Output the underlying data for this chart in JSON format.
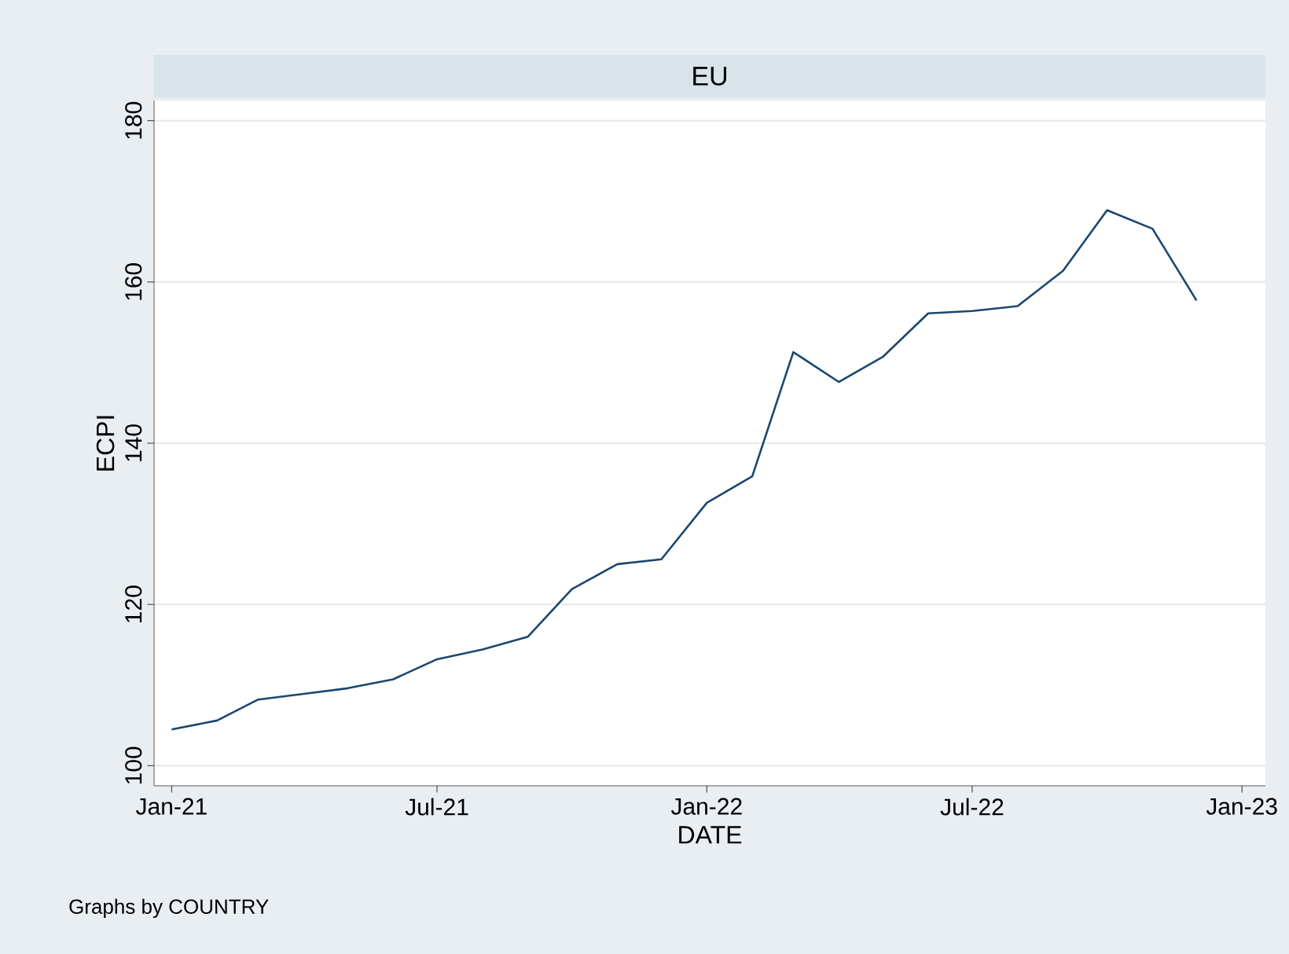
{
  "chart_data": {
    "type": "line",
    "title": "EU",
    "xlabel": "DATE",
    "ylabel": "ECPI",
    "x": [
      "2021-01",
      "2021-02",
      "2021-03",
      "2021-04",
      "2021-05",
      "2021-06",
      "2021-07",
      "2021-08",
      "2021-09",
      "2021-10",
      "2021-11",
      "2021-12",
      "2022-01",
      "2022-02",
      "2022-03",
      "2022-04",
      "2022-05",
      "2022-06",
      "2022-07",
      "2022-08",
      "2022-09",
      "2022-10",
      "2022-11",
      "2022-12"
    ],
    "series": [
      {
        "color": "#1a476f",
        "values": [
          104.5,
          105.6,
          108.2,
          108.9,
          109.6,
          110.7,
          113.2,
          114.4,
          116.0,
          121.9,
          125.0,
          125.6,
          132.6,
          135.9,
          151.3,
          147.6,
          150.7,
          156.1,
          156.4,
          157.0,
          161.4,
          168.9,
          166.6,
          157.7
        ]
      }
    ],
    "xlim": [
      "2020-12-20",
      "2023-01-17"
    ],
    "xticks": [
      {
        "value": "2021-01",
        "label": "Jan-21"
      },
      {
        "value": "2021-07",
        "label": "Jul-21"
      },
      {
        "value": "2022-01",
        "label": "Jan-22"
      },
      {
        "value": "2022-07",
        "label": "Jul-22"
      },
      {
        "value": "2023-01",
        "label": "Jan-23"
      }
    ],
    "ylim": [
      97.5,
      182.5
    ],
    "yticks": [
      100,
      120,
      140,
      160,
      180
    ],
    "grid": "y",
    "marker": "none",
    "line_style": "solid",
    "annotations": [
      "Graphs by COUNTRY"
    ]
  }
}
